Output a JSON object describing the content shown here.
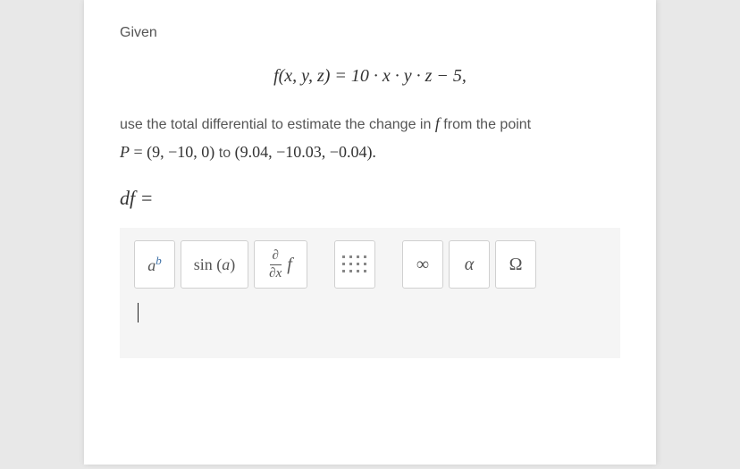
{
  "card": {
    "given_label": "Given",
    "equation": "f(x, y, z) = 10 · x · y · z − 5,",
    "instruction_prefix": "use the total differential to estimate the change in ",
    "instruction_var": "f",
    "instruction_suffix": " from the point",
    "point_line": "P = (9, −10, 0) to (9.04, −10.03, −0.04).",
    "df_prompt": "df =",
    "toolbar": {
      "power": {
        "base": "a",
        "exp": "b"
      },
      "sin_label": "sin (a)",
      "deriv_num": "∂",
      "deriv_den": "∂x",
      "deriv_f": "f",
      "infinity": "∞",
      "alpha": "α",
      "omega": "Ω"
    }
  },
  "styling": {
    "card_bg": "#ffffff",
    "page_bg": "#e8e8e8",
    "text_muted": "#555555",
    "text_main": "#333333",
    "editor_bg": "#f5f5f5",
    "btn_border": "#d0d0d0",
    "exp_color": "#3a6ea5"
  }
}
